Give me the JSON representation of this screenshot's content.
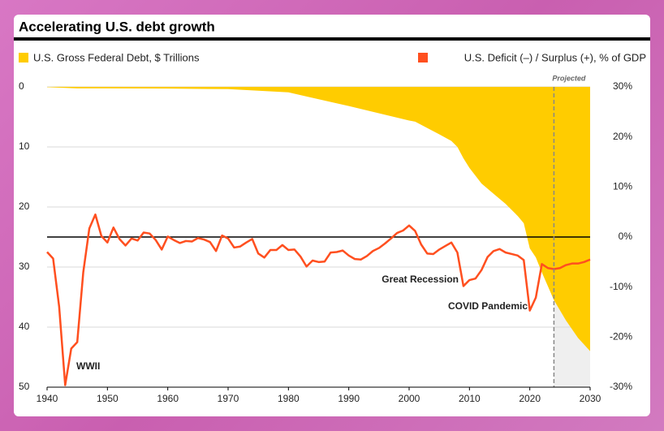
{
  "chart_data": {
    "type": "debt-deficit",
    "title": "Accelerating U.S. debt growth",
    "xlim": [
      1940,
      2030
    ],
    "xticks": [
      1940,
      1950,
      1960,
      1970,
      1980,
      1990,
      2000,
      2010,
      2020,
      2030
    ],
    "ylim": [
      0,
      50
    ],
    "y_inverted": true,
    "yticks": [
      0,
      10,
      20,
      30,
      40,
      50
    ],
    "y2lim": [
      -30,
      30
    ],
    "y2ticks": [
      {
        "value": 30,
        "label": "30%"
      },
      {
        "value": 20,
        "label": "20%"
      },
      {
        "value": 10,
        "label": "10%"
      },
      {
        "value": 0,
        "label": "0%"
      },
      {
        "value": -10,
        "label": "-10%"
      },
      {
        "value": -20,
        "label": "-20%"
      },
      {
        "value": -30,
        "label": "-30%"
      }
    ],
    "grid": true,
    "projected_from": 2024,
    "projected_label": "Projected",
    "annotations": [
      "WWII",
      "Great Recession",
      "COVID Pandemic"
    ],
    "series": [
      {
        "name": "U.S. Gross Federal Debt, $ Trillions",
        "color": "#ffcc00",
        "axis": "y",
        "x": [
          1940,
          1945,
          1950,
          1960,
          1970,
          1980,
          1990,
          2000,
          2001,
          2005,
          2007,
          2008,
          2009,
          2010,
          2012,
          2014,
          2016,
          2018,
          2019,
          2020,
          2021,
          2022,
          2023,
          2024,
          2026,
          2028,
          2030
        ],
        "values": [
          0.05,
          0.26,
          0.26,
          0.29,
          0.38,
          0.91,
          3.2,
          5.6,
          5.8,
          7.9,
          9.0,
          10.0,
          11.9,
          13.5,
          16.1,
          17.8,
          19.5,
          21.5,
          22.7,
          26.9,
          28.4,
          30.9,
          33.2,
          35.5,
          38.9,
          41.8,
          44.0
        ]
      },
      {
        "name": "U.S. Deficit (–) / Surplus (+), % of GDP",
        "color": "#ff4f1f",
        "axis": "y2",
        "x": [
          1940,
          1941,
          1942,
          1943,
          1944,
          1945,
          1946,
          1947,
          1948,
          1949,
          1950,
          1951,
          1952,
          1953,
          1954,
          1955,
          1956,
          1957,
          1958,
          1959,
          1960,
          1961,
          1962,
          1963,
          1964,
          1965,
          1966,
          1967,
          1968,
          1969,
          1970,
          1971,
          1972,
          1973,
          1974,
          1975,
          1976,
          1977,
          1978,
          1979,
          1980,
          1981,
          1982,
          1983,
          1984,
          1985,
          1986,
          1987,
          1988,
          1989,
          1990,
          1991,
          1992,
          1993,
          1994,
          1995,
          1996,
          1997,
          1998,
          1999,
          2000,
          2001,
          2002,
          2003,
          2004,
          2005,
          2006,
          2007,
          2008,
          2009,
          2010,
          2011,
          2012,
          2013,
          2014,
          2015,
          2016,
          2017,
          2018,
          2019,
          2020,
          2021,
          2022,
          2023,
          2024,
          2025,
          2026,
          2027,
          2028,
          2029,
          2030
        ],
        "values": [
          -3.0,
          -4.3,
          -13.9,
          -29.6,
          -22.3,
          -21.0,
          -7.0,
          1.7,
          4.5,
          0.2,
          -1.1,
          1.9,
          -0.4,
          -1.7,
          -0.3,
          -0.7,
          0.9,
          0.7,
          -0.6,
          -2.5,
          0.1,
          -0.6,
          -1.2,
          -0.8,
          -0.9,
          -0.2,
          -0.5,
          -1.0,
          -2.8,
          0.3,
          -0.3,
          -2.1,
          -1.9,
          -1.1,
          -0.4,
          -3.3,
          -4.1,
          -2.6,
          -2.6,
          -1.6,
          -2.6,
          -2.5,
          -3.9,
          -5.9,
          -4.7,
          -5.0,
          -4.9,
          -3.1,
          -3.0,
          -2.7,
          -3.7,
          -4.4,
          -4.5,
          -3.8,
          -2.8,
          -2.2,
          -1.3,
          -0.3,
          0.8,
          1.3,
          2.3,
          1.2,
          -1.5,
          -3.3,
          -3.4,
          -2.5,
          -1.8,
          -1.1,
          -3.1,
          -9.8,
          -8.6,
          -8.3,
          -6.6,
          -4.0,
          -2.8,
          -2.4,
          -3.1,
          -3.4,
          -3.7,
          -4.6,
          -14.7,
          -12.1,
          -5.4,
          -6.2,
          -6.4,
          -6.2,
          -5.6,
          -5.3,
          -5.3,
          -5.0,
          -4.5
        ]
      }
    ]
  }
}
